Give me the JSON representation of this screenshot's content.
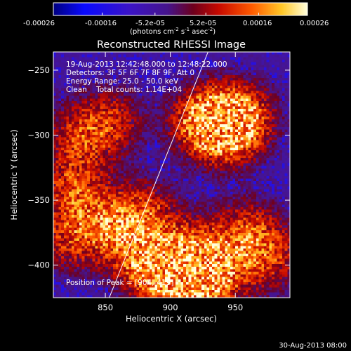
{
  "title": "Reconstructed RHESSI Image",
  "colorbar": {
    "ticks": [
      "-0.00026",
      "-0.00016",
      "-5.2e-05",
      "5.2e-05",
      "0.00016",
      "0.00026"
    ],
    "tick_values": [
      -0.00026,
      -0.00016,
      -5.2e-05,
      5.2e-05,
      0.00016,
      0.00026
    ],
    "range": [
      -0.00026,
      0.00026
    ],
    "units_prefix": "(photons cm",
    "units_exp1": "-2",
    "units_mid": " s",
    "units_exp2": "-1",
    "units_mid2": " asec",
    "units_exp3": "-2",
    "units_suffix": ")"
  },
  "annotations": {
    "time_range": "19-Aug-2013 12:42:48.000 to 12:48:22.000",
    "detectors": "Detectors: 3F 5F 6F 7F 8F 9F, Att 0",
    "energy": "Energy Range: 25.0 - 50.0 keV",
    "clean": "Clean    Total counts: 1.14E+04",
    "peak": "Position of Peak = [904,-419]"
  },
  "footer": {
    "timestamp": "30-Aug-2013 08:00"
  },
  "chart_data": {
    "type": "heatmap",
    "title": "Reconstructed RHESSI Image",
    "xlabel": "Heliocentric X (arcsec)",
    "ylabel": "Heliocentric Y (arcsec)",
    "xlim": [
      810,
      992
    ],
    "ylim": [
      -425,
      -236
    ],
    "xticks": [
      850,
      900,
      950
    ],
    "yticks": [
      -250,
      -300,
      -350,
      -400
    ],
    "limb_line": {
      "x": [
        853,
        929
      ],
      "y": [
        -425,
        -236
      ]
    },
    "peak": {
      "x": 904,
      "y": -419
    },
    "hot_regions": [
      {
        "x": 928,
        "y": -290,
        "strength": 1.0
      },
      {
        "x": 945,
        "y": -295,
        "strength": 0.8
      },
      {
        "x": 955,
        "y": -285,
        "strength": 0.6
      },
      {
        "x": 905,
        "y": -415,
        "strength": 1.0
      },
      {
        "x": 880,
        "y": -395,
        "strength": 0.8
      },
      {
        "x": 920,
        "y": -390,
        "strength": 0.7
      },
      {
        "x": 880,
        "y": -360,
        "strength": 0.6
      },
      {
        "x": 850,
        "y": -370,
        "strength": 0.6
      },
      {
        "x": 825,
        "y": -340,
        "strength": 0.6
      },
      {
        "x": 935,
        "y": -410,
        "strength": 0.7
      },
      {
        "x": 960,
        "y": -375,
        "strength": 0.6
      },
      {
        "x": 978,
        "y": -395,
        "strength": 0.5
      },
      {
        "x": 830,
        "y": -300,
        "strength": 0.5
      },
      {
        "x": 855,
        "y": -290,
        "strength": 0.5
      },
      {
        "x": 820,
        "y": -380,
        "strength": 0.5
      }
    ]
  }
}
